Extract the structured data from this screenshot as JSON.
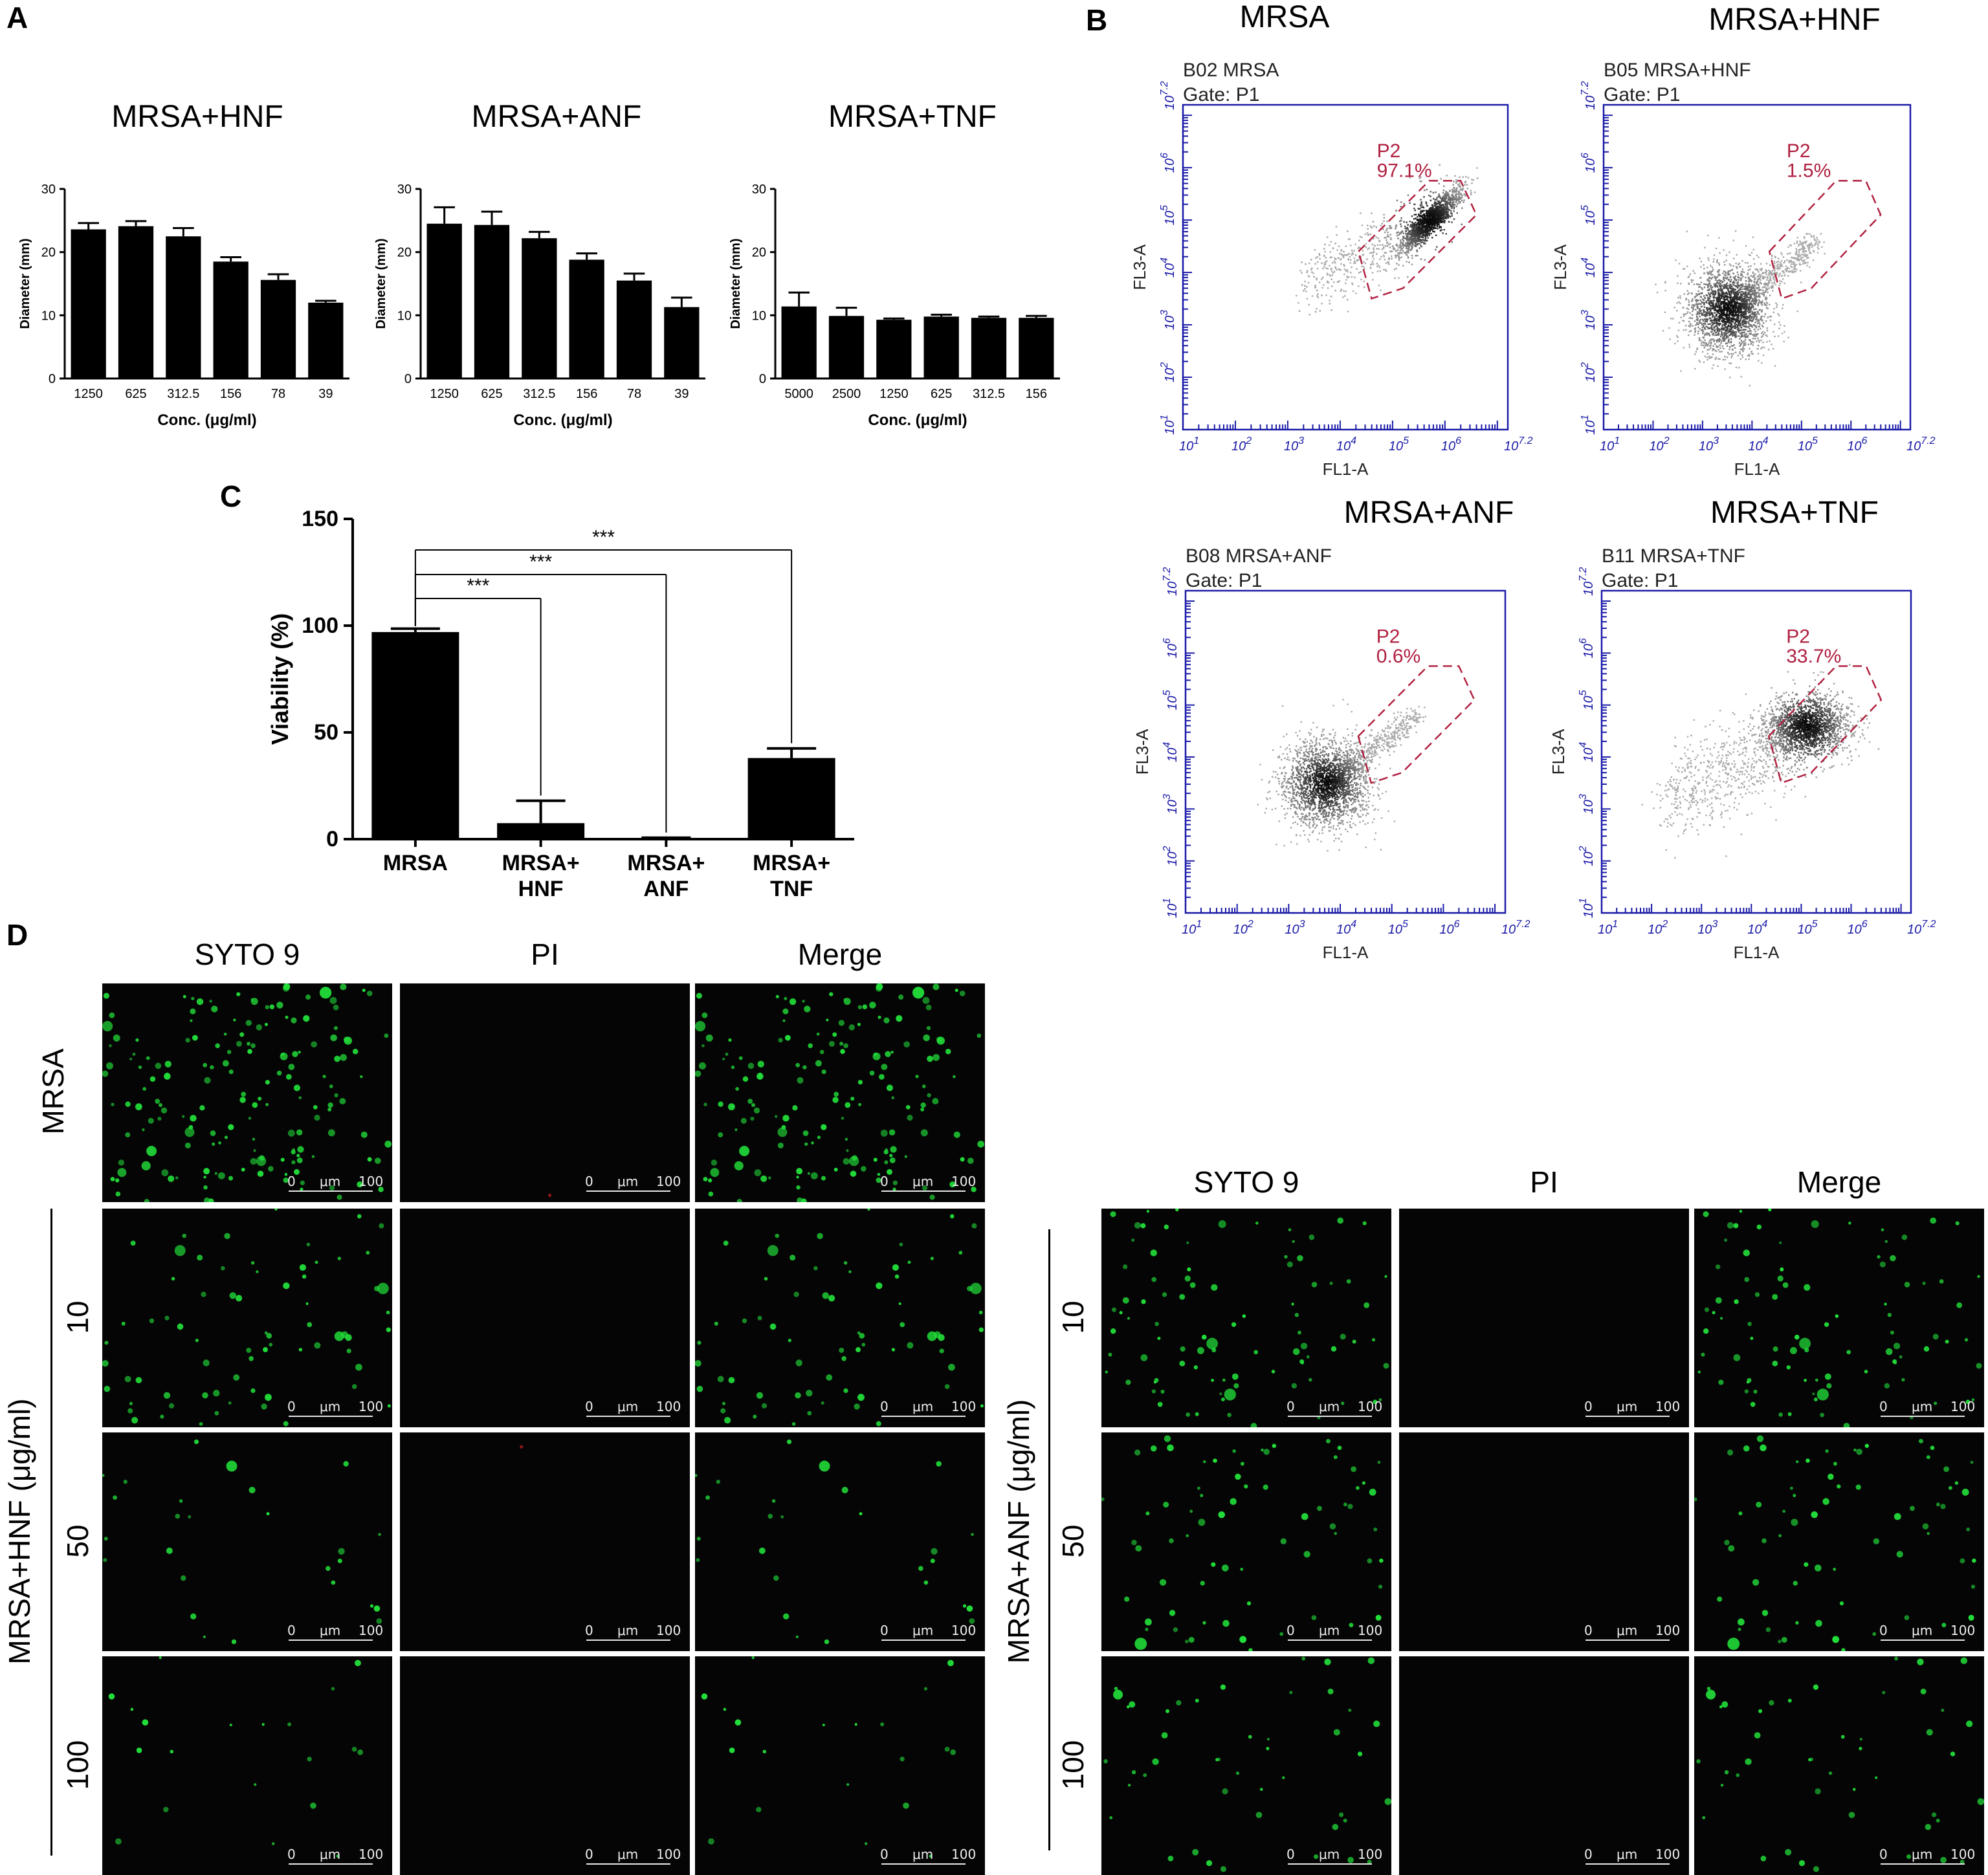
{
  "panels": {
    "A": "A",
    "B": "B",
    "C": "C",
    "D": "D"
  },
  "chart_data": [
    {
      "type": "bar",
      "title": "MRSA+HNF",
      "ylabel": "Diameter (mm)",
      "xlabel": "Conc. (μg/ml)",
      "ylim": [
        0,
        30
      ],
      "yticks": [
        "0",
        "10",
        "20",
        "30"
      ],
      "categories": [
        "1250",
        "625",
        "312.5",
        "156",
        "78",
        "39"
      ],
      "values": [
        23.6,
        24.1,
        22.5,
        18.5,
        15.6,
        12.0
      ],
      "errors": [
        1.0,
        0.8,
        1.3,
        0.7,
        0.9,
        0.3
      ],
      "bar_color": "#000000"
    },
    {
      "type": "bar",
      "title": "MRSA+ANF",
      "ylabel": "Diameter (mm)",
      "xlabel": "Conc. (μg/ml)",
      "ylim": [
        0,
        30
      ],
      "yticks": [
        "0",
        "10",
        "20",
        "30"
      ],
      "categories": [
        "1250",
        "625",
        "312.5",
        "156",
        "78",
        "39"
      ],
      "values": [
        24.5,
        24.3,
        22.2,
        18.8,
        15.5,
        11.3
      ],
      "errors": [
        2.6,
        2.1,
        1.0,
        1.0,
        1.1,
        1.5
      ],
      "bar_color": "#000000"
    },
    {
      "type": "bar",
      "title": "MRSA+TNF",
      "ylabel": "Diameter (mm)",
      "xlabel": "Conc. (μg/ml)",
      "ylim": [
        0,
        30
      ],
      "yticks": [
        "0",
        "10",
        "20",
        "30"
      ],
      "categories": [
        "5000",
        "2500",
        "1250",
        "625",
        "312.5",
        "156"
      ],
      "values": [
        11.4,
        9.9,
        9.3,
        9.8,
        9.6,
        9.6
      ],
      "errors": [
        2.2,
        1.3,
        0.2,
        0.3,
        0.2,
        0.3
      ],
      "bar_color": "#000000"
    },
    {
      "type": "bar",
      "title": "",
      "ylabel": "Viability (%)",
      "xlabel": "",
      "ylim": [
        0,
        150
      ],
      "yticks": [
        "0",
        "50",
        "100",
        "150"
      ],
      "categories": [
        [
          "MRSA"
        ],
        [
          "MRSA+",
          "HNF"
        ],
        [
          "MRSA+",
          "ANF"
        ],
        [
          "MRSA+",
          "TNF"
        ]
      ],
      "values": [
        97.0,
        7.5,
        0.4,
        38.0
      ],
      "errors": [
        1.6,
        10.5,
        0.3,
        4.5
      ],
      "significance": [
        {
          "from": 0,
          "to": 1,
          "label": "***"
        },
        {
          "from": 0,
          "to": 2,
          "label": "***"
        },
        {
          "from": 0,
          "to": 3,
          "label": "***"
        }
      ],
      "bar_color": "#000000"
    },
    {
      "type": "scatter",
      "title": "MRSA",
      "sample": "B02 MRSA",
      "gate": "Gate: P1",
      "region": "P2",
      "region_pct": "97.1%",
      "xlabel": "FL1-A",
      "ylabel": "FL3-A",
      "scale": "log",
      "xlim": [
        1,
        7.2
      ],
      "ylim": [
        1,
        7.2
      ],
      "cluster_center": [
        5.7,
        5.0
      ]
    },
    {
      "type": "scatter",
      "title": "MRSA+HNF",
      "sample": "B05 MRSA+HNF",
      "gate": "Gate: P1",
      "region": "P2",
      "region_pct": "1.5%",
      "xlabel": "FL1-A",
      "ylabel": "FL3-A",
      "scale": "log",
      "xlim": [
        1,
        7.2
      ],
      "ylim": [
        1,
        7.2
      ],
      "cluster_center": [
        3.5,
        3.3
      ]
    },
    {
      "type": "scatter",
      "title": "MRSA+ANF",
      "sample": "B08 MRSA+ANF",
      "gate": "Gate: P1",
      "region": "P2",
      "region_pct": "0.6%",
      "xlabel": "FL1-A",
      "ylabel": "FL3-A",
      "scale": "log",
      "xlim": [
        1,
        7.2
      ],
      "ylim": [
        1,
        7.2
      ],
      "cluster_center": [
        3.7,
        3.5
      ]
    },
    {
      "type": "scatter",
      "title": "MRSA+TNF",
      "sample": "B11 MRSA+TNF",
      "gate": "Gate: P1",
      "region": "P2",
      "region_pct": "33.7%",
      "xlabel": "FL1-A",
      "ylabel": "FL3-A",
      "scale": "log",
      "xlim": [
        1,
        7.2
      ],
      "ylim": [
        1,
        7.2
      ],
      "cluster_center": [
        5.1,
        4.6
      ]
    }
  ],
  "flow_ticks": [
    "10^1",
    "10^2",
    "10^3",
    "10^4",
    "10^5",
    "10^6",
    "10^7.2"
  ],
  "microscopy": {
    "channels": [
      "SYTO 9",
      "PI",
      "Merge"
    ],
    "top_row_label": "MRSA",
    "left_group_label": "MRSA+HNF (μg/ml)",
    "right_group_label": "MRSA+ANF (μg/ml)",
    "doses": [
      "10",
      "50",
      "100"
    ],
    "scale_bar": {
      "start": "0",
      "unit": "μm",
      "end": "100"
    },
    "green": "#22e03a",
    "red": "#d02020"
  }
}
